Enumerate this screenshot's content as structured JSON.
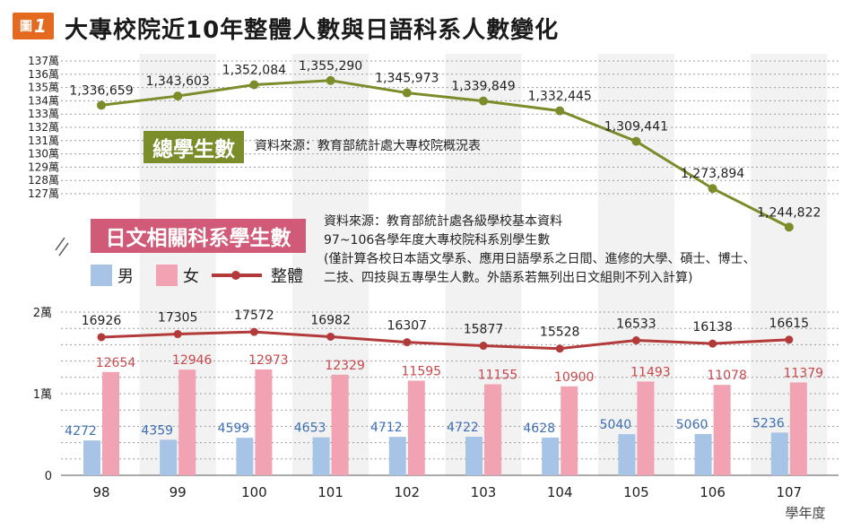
{
  "header": {
    "badge_prefix": "圖",
    "badge_number": "1",
    "title": "大專校院近10年整體人數與日語科系人數變化"
  },
  "labels": {
    "total_box": "總學生數",
    "jp_box": "日文相關科系學生數",
    "source1": "資料來源：教育部統計處大專校院概況表",
    "source2_lines": [
      "資料來源：教育部統計處各級學校基本資料",
      "97~106各學年度大專校院科系別學生數",
      "(僅計算各校日本語文學系、應用日語學系之日間、進修的大學、碩士、博士、",
      "二技、四技與五專學生人數。外語系若無列出日文組則不列入計算)"
    ]
  },
  "colors": {
    "total_line": "#7a8d2a",
    "male": "#a7c4e6",
    "female": "#f2a3b3",
    "overall_line": "#b23a3a",
    "male_label": "#3d6fb5",
    "female_label": "#c8484d",
    "band": "#f2f2f2"
  },
  "chart_data": [
    {
      "type": "line",
      "title": "總學生數",
      "categories": [
        "98",
        "99",
        "100",
        "101",
        "102",
        "103",
        "104",
        "105",
        "106",
        "107"
      ],
      "values": [
        1336659,
        1343603,
        1352084,
        1355290,
        1345973,
        1339849,
        1332445,
        1309441,
        1273894,
        1244822
      ],
      "data_labels": [
        "1,336,659",
        "1,343,603",
        "1,352,084",
        "1,355,290",
        "1,345,973",
        "1,339,849",
        "1,332,445",
        "1,309,441",
        "1,273,894",
        "1,244,822"
      ],
      "yticks": [
        "137萬",
        "136萬",
        "135萬",
        "134萬",
        "133萬",
        "132萬",
        "131萬",
        "130萬",
        "129萬",
        "128萬",
        "127萬"
      ],
      "ylim": [
        1270000,
        1370000
      ]
    },
    {
      "type": "bar",
      "title": "日文相關科系學生數",
      "categories": [
        "98",
        "99",
        "100",
        "101",
        "102",
        "103",
        "104",
        "105",
        "106",
        "107"
      ],
      "series": [
        {
          "name": "男",
          "values": [
            4272,
            4359,
            4599,
            4653,
            4712,
            4722,
            4628,
            5040,
            5060,
            5236
          ]
        },
        {
          "name": "女",
          "values": [
            12654,
            12946,
            12973,
            12329,
            11595,
            11155,
            10900,
            11493,
            11078,
            11379
          ]
        },
        {
          "name": "整體",
          "type": "line",
          "values": [
            16926,
            17305,
            17572,
            16982,
            16307,
            15877,
            15528,
            16533,
            16138,
            16615
          ]
        }
      ],
      "yticks": [
        "2萬",
        "1萬",
        "0"
      ],
      "ylim": [
        0,
        20000
      ],
      "xlabel": "學年度"
    }
  ]
}
